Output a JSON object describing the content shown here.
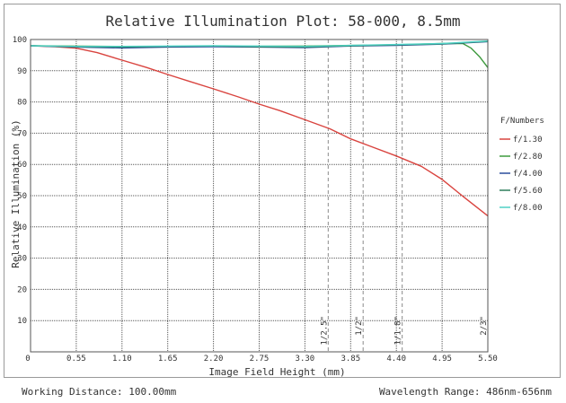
{
  "chart_data": {
    "type": "line",
    "title": "Relative Illumination Plot: 58-000, 8.5mm",
    "xlabel": "Image Field Height (mm)",
    "ylabel": "Relative Illumination (%)",
    "xlim": [
      0,
      5.5
    ],
    "ylim": [
      0,
      100
    ],
    "x_ticks": [
      "0",
      "0.55",
      "1.10",
      "1.65",
      "2.20",
      "2.75",
      "3.30",
      "3.85",
      "4.40",
      "4.95",
      "5.50"
    ],
    "y_ticks": [
      "10",
      "20",
      "30",
      "40",
      "50",
      "60",
      "70",
      "80",
      "90",
      "100"
    ],
    "grid": true,
    "legend": {
      "title": "F/Numbers",
      "placement": "right"
    },
    "series": [
      {
        "name": "f/1.30",
        "color": "#d9443f",
        "x": [
          0,
          0.3,
          0.55,
          0.8,
          1.1,
          1.4,
          1.65,
          1.9,
          2.2,
          2.5,
          2.75,
          3.0,
          3.3,
          3.6,
          3.85,
          4.1,
          4.4,
          4.7,
          4.95,
          5.2,
          5.5
        ],
        "y": [
          98,
          97.7,
          97.2,
          95.8,
          93.4,
          91,
          88.8,
          86.7,
          84.2,
          81.6,
          79.3,
          77.2,
          74.3,
          71.4,
          68.2,
          65.7,
          62.7,
          59.4,
          55.2,
          49.8,
          43.5
        ]
      },
      {
        "name": "f/2.80",
        "color": "#3e9a3e",
        "x": [
          0,
          1.1,
          2.2,
          3.3,
          4.4,
          4.95,
          5.2,
          5.3,
          5.4,
          5.5
        ],
        "y": [
          98,
          97.8,
          97.8,
          97.9,
          98.3,
          98.7,
          98.7,
          97.2,
          94.5,
          91
        ]
      },
      {
        "name": "f/4.00",
        "color": "#2a4d9c",
        "x": [
          0,
          0.55,
          1.1,
          1.65,
          2.2,
          2.75,
          3.3,
          3.85,
          4.4,
          4.95,
          5.5
        ],
        "y": [
          98,
          97.6,
          97.3,
          97.6,
          97.7,
          97.6,
          97.4,
          97.9,
          98.1,
          98.5,
          99.3
        ]
      },
      {
        "name": "f/5.60",
        "color": "#2e7d5a",
        "x": [
          0,
          0.55,
          1.1,
          1.65,
          2.2,
          2.75,
          3.3,
          3.85,
          4.4,
          4.95,
          5.5
        ],
        "y": [
          98,
          97.7,
          97.6,
          97.8,
          97.9,
          97.7,
          97.6,
          98,
          98.3,
          98.6,
          99.4
        ]
      },
      {
        "name": "f/8.00",
        "color": "#4fd1c5",
        "x": [
          0,
          0.55,
          1.1,
          1.65,
          2.2,
          2.75,
          3.3,
          3.85,
          4.4,
          4.95,
          5.5
        ],
        "y": [
          98,
          97.8,
          97.8,
          97.9,
          98,
          97.9,
          97.8,
          98.1,
          98.4,
          98.7,
          99.5
        ]
      }
    ],
    "sensor_markers": [
      {
        "label": "1/2.5\"",
        "x": 3.58
      },
      {
        "label": "1/2\"",
        "x": 4.0
      },
      {
        "label": "1/1.8\"",
        "x": 4.47
      },
      {
        "label": "2/3\"",
        "x": 5.5
      }
    ]
  },
  "footer": {
    "working_distance": "Working Distance: 100.00mm",
    "wavelength_range": "Wavelength Range: 486nm-656nm"
  }
}
